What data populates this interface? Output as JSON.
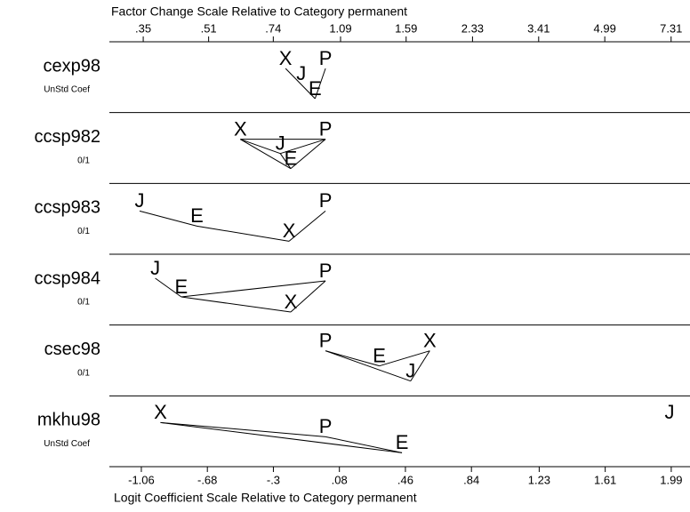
{
  "chart_data": {
    "type": "odds-ratio-plot",
    "x_label": "Logit Coefficient Scale Relative to Category permanent",
    "x2_label": "Factor Change Scale Relative to Category permanent",
    "xlim": [
      -1.244,
      2.098
    ],
    "xticks": [
      -1.06,
      {
        "value": -0.68,
        "label": "-.68"
      },
      {
        "value": -0.3,
        "label": "-.3"
      },
      {
        "value": 0.08,
        "label": ".08"
      },
      {
        "value": 0.46,
        "label": ".46"
      },
      {
        "value": 0.84,
        "label": ".84"
      },
      1.23,
      1.61,
      1.99
    ],
    "x2scale": "log",
    "x2lim": [
      0.288,
      8.15
    ],
    "x2ticks": [
      {
        "value": 0.35,
        "label": ".35"
      },
      {
        "value": 0.51,
        "label": ".51"
      },
      {
        "value": 0.74,
        "label": ".74"
      },
      1.09,
      1.59,
      2.33,
      3.41,
      4.99,
      7.31
    ],
    "rows": [
      {
        "name": "cexp98",
        "sublabel": "UnStd Coef",
        "points": [
          {
            "letter": "X",
            "value": -0.23
          },
          {
            "letter": "J",
            "value": -0.14
          },
          {
            "letter": "E",
            "value": -0.06
          },
          {
            "letter": "P",
            "value": 0
          }
        ]
      },
      {
        "name": "ccsp982",
        "sublabel": "0/1",
        "points": [
          {
            "letter": "X",
            "value": -0.49
          },
          {
            "letter": "J",
            "value": -0.26
          },
          {
            "letter": "E",
            "value": -0.2
          },
          {
            "letter": "P",
            "value": 0
          }
        ]
      },
      {
        "name": "ccsp983",
        "sublabel": "0/1",
        "points": [
          {
            "letter": "J",
            "value": -1.07
          },
          {
            "letter": "E",
            "value": -0.74
          },
          {
            "letter": "X",
            "value": -0.21
          },
          {
            "letter": "P",
            "value": 0
          }
        ]
      },
      {
        "name": "ccsp984",
        "sublabel": "0/1",
        "points": [
          {
            "letter": "J",
            "value": -0.98
          },
          {
            "letter": "E",
            "value": -0.83
          },
          {
            "letter": "X",
            "value": -0.2
          },
          {
            "letter": "P",
            "value": 0
          }
        ]
      },
      {
        "name": "csec98",
        "sublabel": "0/1",
        "points": [
          {
            "letter": "P",
            "value": 0
          },
          {
            "letter": "E",
            "value": 0.31
          },
          {
            "letter": "J",
            "value": 0.49
          },
          {
            "letter": "X",
            "value": 0.6
          }
        ]
      },
      {
        "name": "mkhu98",
        "sublabel": "UnStd Coef",
        "points": [
          {
            "letter": "X",
            "value": -0.95
          },
          {
            "letter": "P",
            "value": 0
          },
          {
            "letter": "E",
            "value": 0.44
          },
          {
            "letter": "J",
            "value": 1.98
          }
        ]
      }
    ]
  }
}
